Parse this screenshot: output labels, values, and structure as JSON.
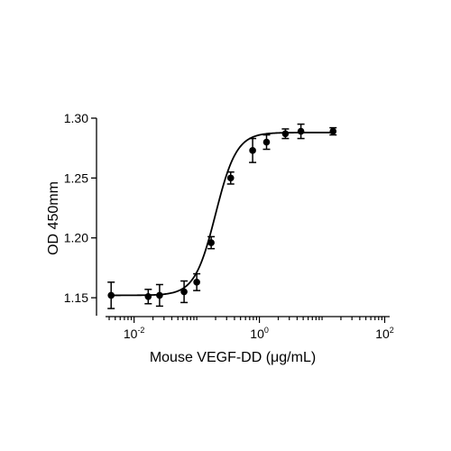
{
  "chart_data": {
    "type": "scatter",
    "xlabel": "Mouse VEGF-DD (μg/mL)",
    "ylabel": "OD 450mm",
    "x_scale": "log10",
    "xlim": [
      0.0035,
      120
    ],
    "ylim": [
      1.135,
      1.3
    ],
    "y_ticks": [
      1.15,
      1.2,
      1.25,
      1.3
    ],
    "y_tick_labels": [
      "1.15",
      "1.20",
      "1.25",
      "1.30"
    ],
    "x_major_ticks": [
      0.01,
      1,
      100
    ],
    "x_tick_labels": [
      {
        "base": "10",
        "exp": "-2"
      },
      {
        "base": "10",
        "exp": "0"
      },
      {
        "base": "10",
        "exp": "2"
      }
    ],
    "points": [
      {
        "x": 0.0043,
        "y": 1.152,
        "err": 0.011
      },
      {
        "x": 0.0168,
        "y": 1.151,
        "err": 0.006
      },
      {
        "x": 0.0255,
        "y": 1.152,
        "err": 0.009
      },
      {
        "x": 0.0628,
        "y": 1.155,
        "err": 0.009
      },
      {
        "x": 0.1,
        "y": 1.163,
        "err": 0.007
      },
      {
        "x": 0.17,
        "y": 1.196,
        "err": 0.005
      },
      {
        "x": 0.348,
        "y": 1.25,
        "err": 0.005
      },
      {
        "x": 0.78,
        "y": 1.273,
        "err": 0.01
      },
      {
        "x": 1.3,
        "y": 1.28,
        "err": 0.006
      },
      {
        "x": 2.6,
        "y": 1.287,
        "err": 0.004
      },
      {
        "x": 4.6,
        "y": 1.289,
        "err": 0.006
      },
      {
        "x": 15.0,
        "y": 1.289,
        "err": 0.003
      }
    ],
    "fit": {
      "type": "4PL",
      "bottom": 1.152,
      "top": 1.288,
      "ec50": 0.2,
      "hill": 2.6
    },
    "grid": false,
    "marker_color": "#000000",
    "line_color": "#000000"
  }
}
